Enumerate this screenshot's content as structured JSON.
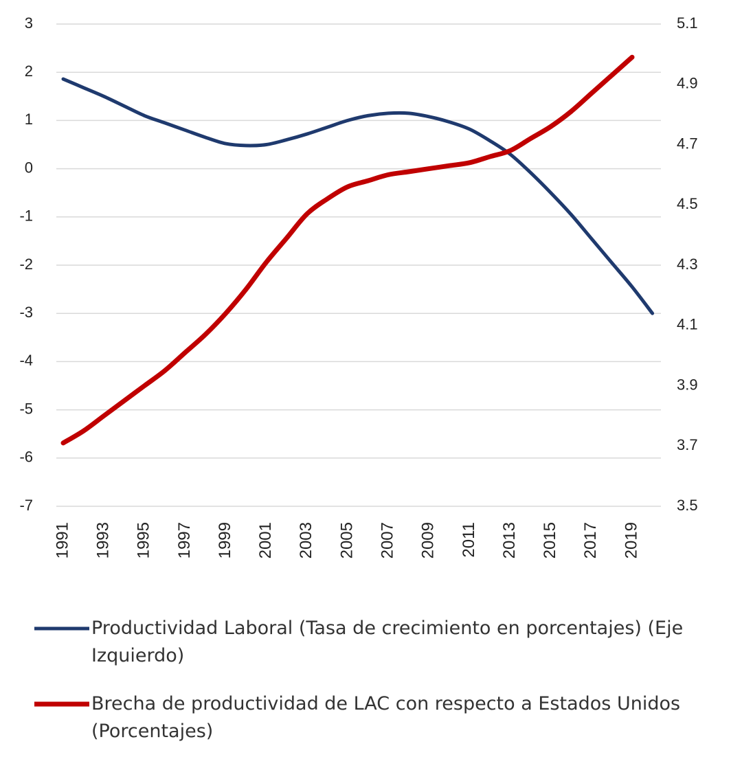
{
  "chart_data": {
    "type": "line",
    "x": [
      1991,
      1992,
      1993,
      1994,
      1995,
      1996,
      1997,
      1998,
      1999,
      2000,
      2001,
      2002,
      2003,
      2004,
      2005,
      2006,
      2007,
      2008,
      2009,
      2010,
      2011,
      2012,
      2013,
      2014,
      2015,
      2016,
      2017,
      2018,
      2019,
      2020
    ],
    "xlim": [
      1991,
      2020
    ],
    "xticks": [
      1991,
      1993,
      1995,
      1997,
      1999,
      2001,
      2003,
      2005,
      2007,
      2009,
      2011,
      2013,
      2015,
      2017,
      2019
    ],
    "ylim": [
      -7,
      3
    ],
    "yticks": [
      3,
      2,
      1,
      0,
      -1,
      -2,
      -3,
      -4,
      -5,
      -6,
      -7
    ],
    "y2lim": [
      3.5,
      5.1
    ],
    "y2ticks": [
      5.1,
      4.9,
      4.7,
      4.5,
      4.3,
      4.1,
      3.9,
      3.7,
      3.5
    ],
    "grid": true,
    "series": [
      {
        "name": "Productividad Laboral (Tasa de crecimiento en porcentajes) (Eje Izquierdo)",
        "color": "#1f3a6e",
        "values": [
          1.86,
          1.68,
          1.5,
          1.3,
          1.1,
          0.95,
          0.8,
          0.65,
          0.52,
          0.48,
          0.5,
          0.6,
          0.72,
          0.86,
          1.0,
          1.1,
          1.15,
          1.15,
          1.08,
          0.97,
          0.82,
          0.58,
          0.3,
          -0.08,
          -0.5,
          -0.95,
          -1.45,
          -1.95,
          -2.45,
          -3.0
        ]
      },
      {
        "name": "Brecha de productividad de LAC con respecto a Estados Unidos (Porcentajes)",
        "color": "#c00000",
        "axis": "y2",
        "values": [
          3.71,
          3.75,
          3.8,
          3.85,
          3.9,
          3.95,
          4.01,
          4.07,
          4.14,
          4.22,
          4.31,
          4.39,
          4.47,
          4.52,
          4.56,
          4.58,
          4.6,
          4.61,
          4.62,
          4.63,
          4.64,
          4.66,
          4.68,
          4.72,
          4.76,
          4.81,
          4.87,
          4.93,
          4.99,
          null
        ]
      }
    ]
  }
}
